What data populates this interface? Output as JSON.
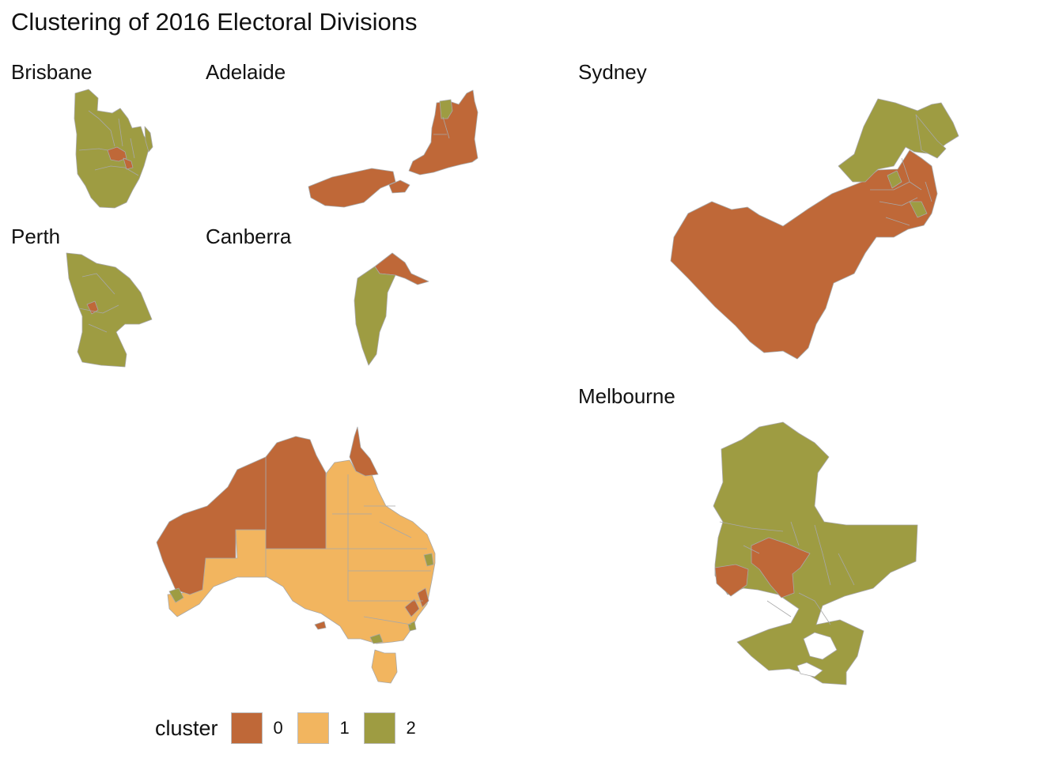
{
  "title": "Clustering of 2016 Electoral Divisions",
  "panels": {
    "brisbane": "Brisbane",
    "adelaide": "Adelaide",
    "sydney": "Sydney",
    "perth": "Perth",
    "canberra": "Canberra",
    "melbourne": "Melbourne"
  },
  "legend": {
    "title": "cluster",
    "items": [
      {
        "label": "0",
        "color": "#BF6838"
      },
      {
        "label": "1",
        "color": "#F2B55F"
      },
      {
        "label": "2",
        "color": "#9E9C42"
      }
    ]
  },
  "colors": {
    "cluster_0": "#BF6838",
    "cluster_1": "#F2B55F",
    "cluster_2": "#9E9C42",
    "border": "#a8a8a8"
  }
}
